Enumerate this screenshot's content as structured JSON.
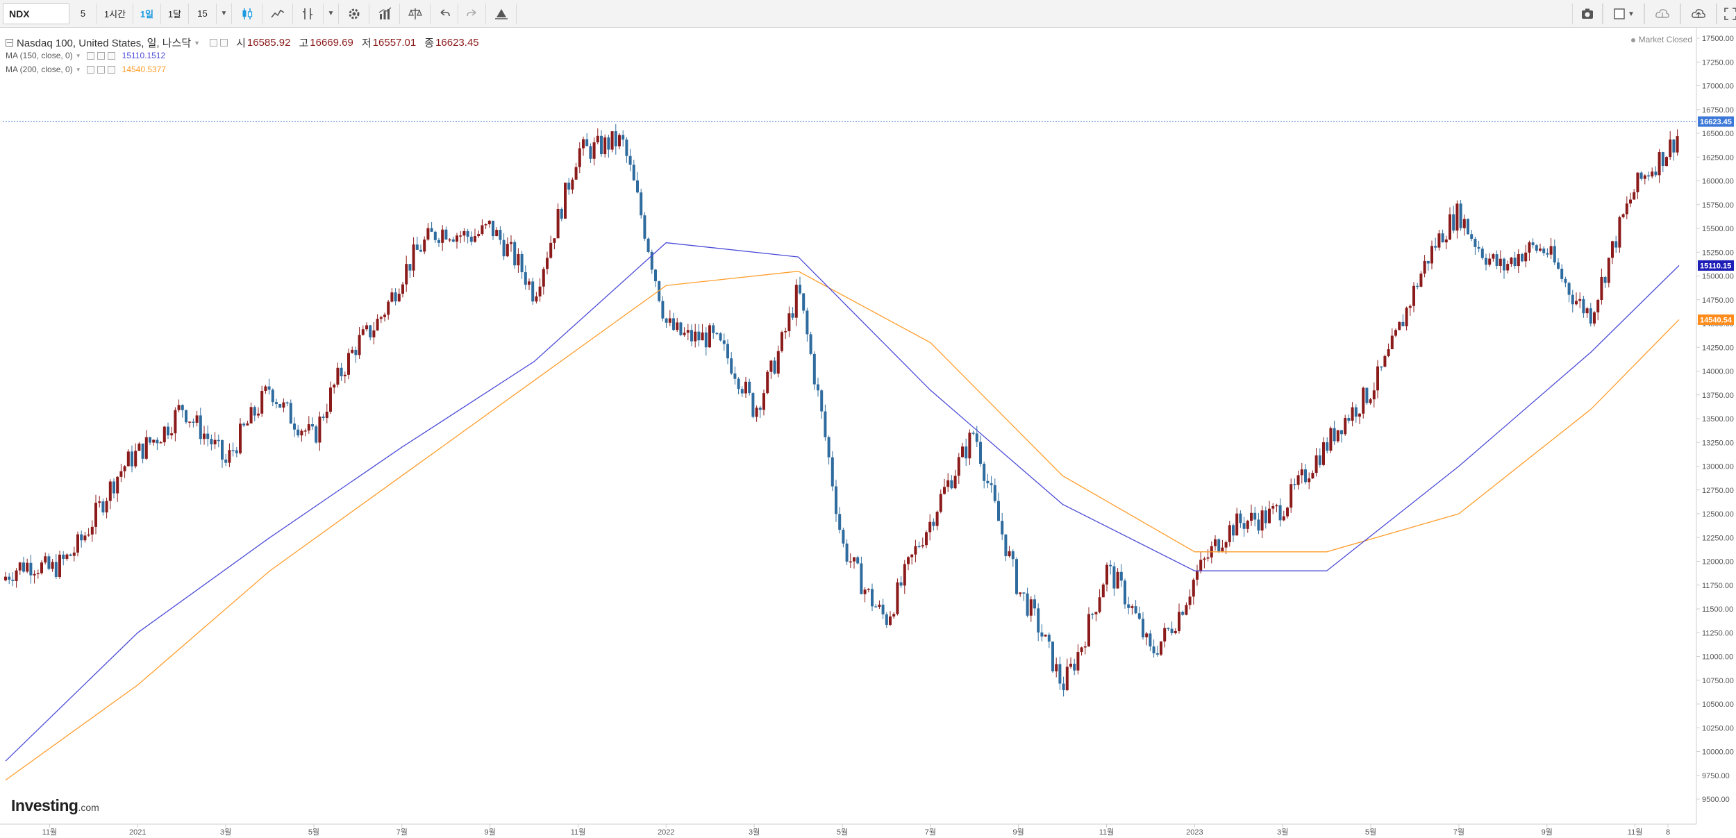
{
  "toolbar": {
    "symbol": "NDX",
    "intervals": [
      "5",
      "1시간",
      "1일",
      "1달",
      "15"
    ],
    "active_interval": "1일",
    "icons": [
      "candlestick-icon",
      "line-chart-icon",
      "indicator-icon",
      "dropdown-arrow-icon",
      "settings-gear-icon",
      "studies-icon",
      "compare-icon",
      "undo-icon",
      "redo-icon",
      "alert-icon"
    ],
    "right_icons": [
      "camera-icon",
      "layout-icon",
      "cloud-download-icon",
      "cloud-upload-icon",
      "fullscreen-icon"
    ]
  },
  "legend": {
    "title": "Nasdaq 100, United States, 일, 나스닥",
    "open_label": "시",
    "open": "16585.92",
    "high_label": "고",
    "high": "16669.69",
    "low_label": "저",
    "low": "16557.01",
    "close_label": "종",
    "close": "16623.45",
    "ma1_label": "MA (150, close, 0)",
    "ma1_value": "15110.1512",
    "ma2_label": "MA (200, close, 0)",
    "ma2_value": "14540.5377"
  },
  "market_status": "Market Closed",
  "logo": {
    "text": "Investing",
    "suffix": ".com"
  },
  "colors": {
    "up": "#8b1a1a",
    "down": "#2e6b9e",
    "ma150": "#4b4bd8",
    "ma200": "#ff9d2b",
    "price_line": "#3b78d8"
  },
  "chart_data": {
    "type": "candlestick",
    "title": "Nasdaq 100, United States, 일, 나스닥",
    "ylim": [
      9300,
      17650
    ],
    "y_ticks": [
      "17500.00",
      "17250.00",
      "17000.00",
      "16750.00",
      "16500.00",
      "16250.00",
      "16000.00",
      "15750.00",
      "15500.00",
      "15250.00",
      "15000.00",
      "14750.00",
      "14500.00",
      "14250.00",
      "14000.00",
      "13750.00",
      "13500.00",
      "13250.00",
      "13000.00",
      "12750.00",
      "12500.00",
      "12250.00",
      "12000.00",
      "11750.00",
      "11500.00",
      "11250.00",
      "11000.00",
      "10750.00",
      "10500.00",
      "10250.00",
      "10000.00",
      "9750.00",
      "9500.00"
    ],
    "x_ticks": [
      "11월",
      "2021",
      "3월",
      "5월",
      "7월",
      "9월",
      "11월",
      "2022",
      "3월",
      "5월",
      "7월",
      "9월",
      "11월",
      "2023",
      "3월",
      "5월",
      "7월",
      "9월",
      "11월",
      "8"
    ],
    "price_points": [
      {
        "date": "2020-10",
        "value": 11800
      },
      {
        "date": "2020-11",
        "value": 11900
      },
      {
        "date": "2020-12",
        "value": 12500
      },
      {
        "date": "2021-01",
        "value": 13050
      },
      {
        "date": "2021-02",
        "value": 13750
      },
      {
        "date": "2021-03",
        "value": 12900
      },
      {
        "date": "2021-04",
        "value": 13950
      },
      {
        "date": "2021-05",
        "value": 13200
      },
      {
        "date": "2021-06",
        "value": 14350
      },
      {
        "date": "2021-07",
        "value": 15000
      },
      {
        "date": "2021-08",
        "value": 15450
      },
      {
        "date": "2021-09",
        "value": 15600
      },
      {
        "date": "2021-10",
        "value": 14700
      },
      {
        "date": "2021-11",
        "value": 16450
      },
      {
        "date": "2021-12",
        "value": 16300
      },
      {
        "date": "2022-01",
        "value": 14600
      },
      {
        "date": "2022-02",
        "value": 14300
      },
      {
        "date": "2022-03",
        "value": 13600
      },
      {
        "date": "2022-04",
        "value": 14900
      },
      {
        "date": "2022-05",
        "value": 12100
      },
      {
        "date": "2022-06",
        "value": 11500
      },
      {
        "date": "2022-07",
        "value": 12300
      },
      {
        "date": "2022-08",
        "value": 13500
      },
      {
        "date": "2022-09",
        "value": 11600
      },
      {
        "date": "2022-10",
        "value": 10750
      },
      {
        "date": "2022-11",
        "value": 11900
      },
      {
        "date": "2022-12",
        "value": 11000
      },
      {
        "date": "2023-01",
        "value": 11900
      },
      {
        "date": "2023-02",
        "value": 12300
      },
      {
        "date": "2023-03",
        "value": 12700
      },
      {
        "date": "2023-04",
        "value": 13100
      },
      {
        "date": "2023-05",
        "value": 13900
      },
      {
        "date": "2023-06",
        "value": 14800
      },
      {
        "date": "2023-07",
        "value": 15700
      },
      {
        "date": "2023-08",
        "value": 15100
      },
      {
        "date": "2023-09",
        "value": 15200
      },
      {
        "date": "2023-10",
        "value": 14700
      },
      {
        "date": "2023-11",
        "value": 15800
      },
      {
        "date": "2023-12",
        "value": 16623.45
      }
    ],
    "ma150": [
      {
        "date": "2020-10",
        "value": 9900
      },
      {
        "date": "2021-01",
        "value": 11250
      },
      {
        "date": "2021-04",
        "value": 12250
      },
      {
        "date": "2021-07",
        "value": 13200
      },
      {
        "date": "2021-10",
        "value": 14100
      },
      {
        "date": "2022-01",
        "value": 15350
      },
      {
        "date": "2022-04",
        "value": 15200
      },
      {
        "date": "2022-07",
        "value": 13800
      },
      {
        "date": "2022-10",
        "value": 12600
      },
      {
        "date": "2023-01",
        "value": 11900
      },
      {
        "date": "2023-04",
        "value": 11900
      },
      {
        "date": "2023-07",
        "value": 13000
      },
      {
        "date": "2023-10",
        "value": 14200
      },
      {
        "date": "2023-12",
        "value": 15110.15
      }
    ],
    "ma200": [
      {
        "date": "2020-10",
        "value": 9700
      },
      {
        "date": "2021-01",
        "value": 10700
      },
      {
        "date": "2021-04",
        "value": 11900
      },
      {
        "date": "2021-07",
        "value": 12900
      },
      {
        "date": "2021-10",
        "value": 13900
      },
      {
        "date": "2022-01",
        "value": 14900
      },
      {
        "date": "2022-04",
        "value": 15050
      },
      {
        "date": "2022-07",
        "value": 14300
      },
      {
        "date": "2022-10",
        "value": 12900
      },
      {
        "date": "2023-01",
        "value": 12100
      },
      {
        "date": "2023-04",
        "value": 12100
      },
      {
        "date": "2023-07",
        "value": 12500
      },
      {
        "date": "2023-10",
        "value": 13600
      },
      {
        "date": "2023-12",
        "value": 14540.54
      }
    ],
    "last_price_label": "16623.45",
    "ma150_label": "15110.15",
    "ma200_label": "14540.54",
    "grid": false
  }
}
